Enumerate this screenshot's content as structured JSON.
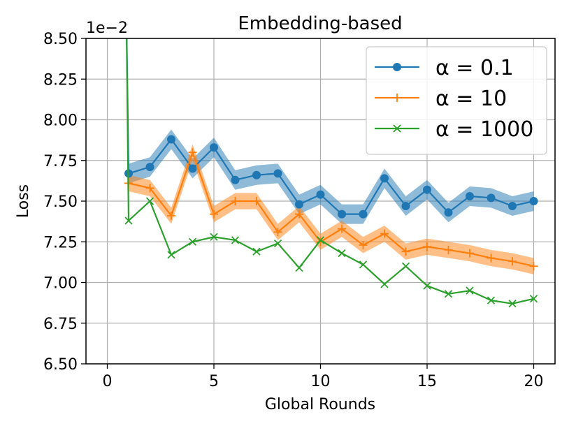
{
  "chart_data": {
    "type": "line",
    "title": "Embedding-based",
    "xlabel": "Global Rounds",
    "ylabel": "Loss",
    "offset_label": "1e−2",
    "xlim": [
      -1,
      21
    ],
    "ylim": [
      6.5,
      8.5
    ],
    "xticks": [
      0,
      5,
      10,
      15,
      20
    ],
    "xtick_labels": [
      "0",
      "5",
      "10",
      "15",
      "20"
    ],
    "yticks": [
      6.5,
      6.75,
      7.0,
      7.25,
      7.5,
      7.75,
      8.0,
      8.25,
      8.5
    ],
    "ytick_labels": [
      "6.50",
      "6.75",
      "7.00",
      "7.25",
      "7.50",
      "7.75",
      "8.00",
      "8.25",
      "8.50"
    ],
    "grid": true,
    "legend_position": "top-right",
    "series": [
      {
        "name": "α = 0.1",
        "legend_label": "α = 0.1",
        "color": "#1f77b4",
        "marker": "circle",
        "x": [
          1,
          2,
          3,
          4,
          5,
          6,
          7,
          8,
          9,
          10,
          11,
          12,
          13,
          14,
          15,
          16,
          17,
          18,
          19,
          20
        ],
        "values": [
          7.67,
          7.71,
          7.88,
          7.7,
          7.83,
          7.63,
          7.66,
          7.67,
          7.48,
          7.54,
          7.42,
          7.42,
          7.64,
          7.47,
          7.57,
          7.43,
          7.53,
          7.52,
          7.47,
          7.5
        ],
        "band": 0.06,
        "start": [
          0.9,
          8.6
        ]
      },
      {
        "name": "α = 10",
        "legend_label": "α = 10",
        "color": "#ff7f0e",
        "marker": "plus",
        "x": [
          1,
          2,
          3,
          4,
          5,
          6,
          7,
          8,
          9,
          10,
          11,
          12,
          13,
          14,
          15,
          16,
          17,
          18,
          19,
          20
        ],
        "values": [
          7.61,
          7.58,
          7.41,
          7.8,
          7.42,
          7.5,
          7.5,
          7.31,
          7.42,
          7.25,
          7.33,
          7.23,
          7.3,
          7.19,
          7.22,
          7.2,
          7.18,
          7.15,
          7.13,
          7.1
        ],
        "band": 0.05,
        "start": null
      },
      {
        "name": "α = 1000",
        "legend_label": "α = 1000",
        "color": "#2ca02c",
        "marker": "x",
        "x": [
          1,
          2,
          3,
          4,
          5,
          6,
          7,
          8,
          9,
          10,
          11,
          12,
          13,
          14,
          15,
          16,
          17,
          18,
          19,
          20
        ],
        "values": [
          7.38,
          7.5,
          7.17,
          7.25,
          7.28,
          7.26,
          7.19,
          7.24,
          7.09,
          7.26,
          7.18,
          7.11,
          6.99,
          7.1,
          6.98,
          6.93,
          6.95,
          6.89,
          6.87,
          6.9
        ],
        "band": 0,
        "start": [
          0.9,
          8.6
        ]
      }
    ]
  }
}
